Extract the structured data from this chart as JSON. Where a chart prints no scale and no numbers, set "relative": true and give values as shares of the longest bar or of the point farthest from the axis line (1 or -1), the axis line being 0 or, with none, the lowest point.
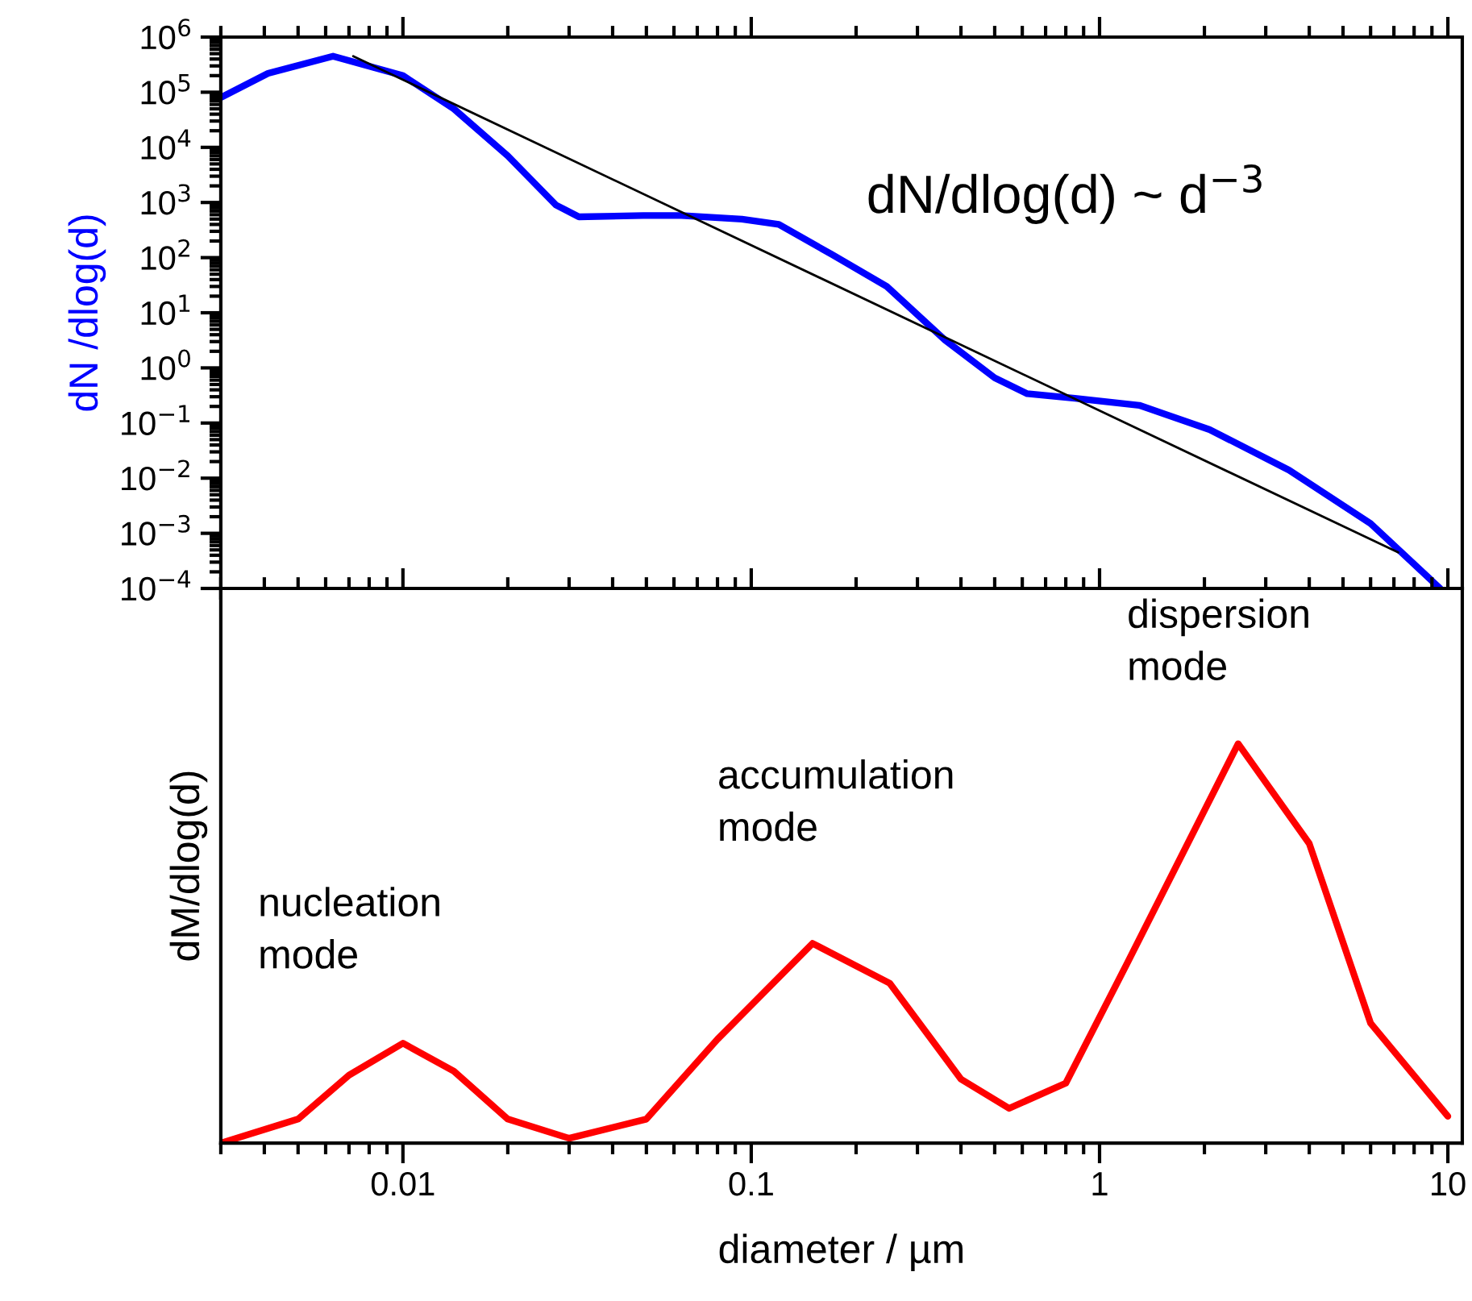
{
  "chart_data": [
    {
      "type": "line",
      "ylabel": "dN /dlog(d)",
      "log": "xy",
      "xlim": [
        0.003,
        11
      ],
      "xticks": [
        0.01,
        0.1,
        1,
        10
      ],
      "ylim": [
        0.0001,
        1000000
      ],
      "tick_labels": "y",
      "yticks": [
        {
          "value": 0.0001,
          "label": "10$^{−4}$"
        },
        {
          "value": 0.001,
          "label": "10$^{−3}$"
        },
        {
          "value": 0.01,
          "label": "10$^{−2}$"
        },
        {
          "value": 0.1,
          "label": "10$^{−1}$"
        },
        {
          "value": 1,
          "label": "10$^{0}$"
        },
        {
          "value": 10,
          "label": "10$^{1}$"
        },
        {
          "value": 100,
          "label": "10$^{2}$"
        },
        {
          "value": 1000,
          "label": "10$^{3}$"
        },
        {
          "value": 10000,
          "label": "10$^{4}$"
        },
        {
          "value": 100000,
          "label": "10$^{5}$"
        },
        {
          "value": 1000000,
          "label": "10$^{6}$"
        }
      ],
      "annotations": [
        "dN/dlog(d) ~ d$^{−3}$"
      ],
      "grid": false,
      "legend": false,
      "series": [
        {
          "color": "#0000ff",
          "x": [
            0.003,
            0.0041,
            0.0063,
            0.01,
            0.014,
            0.02,
            0.0275,
            0.032,
            0.049,
            0.063,
            0.094,
            0.12,
            0.17,
            0.245,
            0.36,
            0.5,
            0.62,
            0.85,
            1.3,
            2.07,
            3.5,
            6.0,
            9.5
          ],
          "values": [
            80000,
            220000,
            450000,
            200000,
            50000,
            7000,
            900,
            550,
            580,
            580,
            500,
            400,
            115,
            30,
            3.2,
            0.66,
            0.34,
            0.28,
            0.21,
            0.076,
            0.014,
            0.0015,
            0.0001
          ]
        },
        {
          "color": "#000000",
          "x": [
            0.0072,
            7.2
          ],
          "values": [
            450000,
            0.00045
          ]
        }
      ]
    },
    {
      "type": "line",
      "ylabel": "dM/dlog(d)",
      "xlabel": "diameter / µm",
      "log": "x",
      "xlim": [
        0.003,
        11
      ],
      "xticks": [
        0.01,
        0.1,
        1,
        10
      ],
      "relative": true,
      "grid": false,
      "legend": false,
      "annotations": [
        "nucleation\nmode",
        "accumulation\nmode",
        "dispersion\nmode"
      ],
      "series": [
        {
          "color": "#ff0000",
          "x": [
            0.003,
            0.005,
            0.007,
            0.01,
            0.014,
            0.02,
            0.03,
            0.05,
            0.08,
            0.15,
            0.25,
            0.4,
            0.55,
            0.8,
            1.2,
            2.5,
            4,
            6,
            10
          ],
          "values": [
            0,
            0.06,
            0.17,
            0.25,
            0.18,
            0.06,
            0.012,
            0.06,
            0.26,
            0.5,
            0.4,
            0.16,
            0.087,
            0.15,
            0.45,
            1.0,
            0.75,
            0.3,
            0.067
          ]
        }
      ]
    }
  ]
}
